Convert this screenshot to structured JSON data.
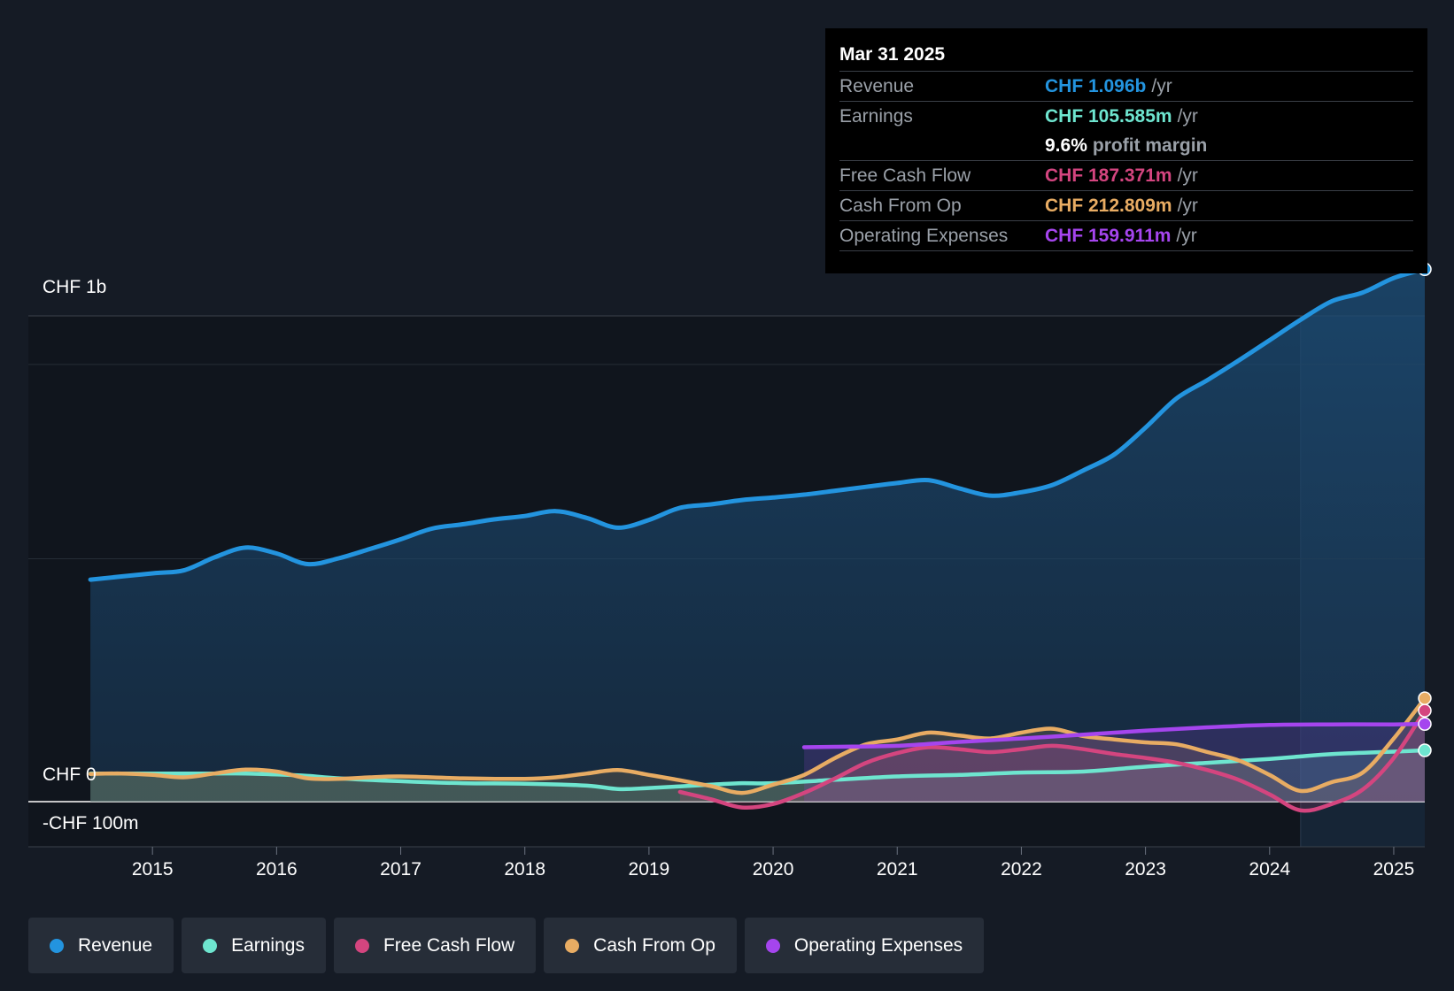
{
  "chart_data": {
    "type": "line",
    "currency": "CHF",
    "y_axis_labels": [
      "CHF 1b",
      "CHF 0",
      "-CHF 100m"
    ],
    "ylim": [
      -100,
      1100
    ],
    "x_ticks": [
      "2015",
      "2016",
      "2017",
      "2018",
      "2019",
      "2020",
      "2021",
      "2022",
      "2023",
      "2024",
      "2025"
    ],
    "xlim": [
      2014.0,
      2025.25
    ],
    "highlight_start": 2024.25,
    "series": [
      {
        "name": "Revenue",
        "color": "#2394df",
        "filled": true,
        "points": [
          [
            2014.5,
            457
          ],
          [
            2015.0,
            470
          ],
          [
            2015.25,
            476
          ],
          [
            2015.5,
            503
          ],
          [
            2015.75,
            523
          ],
          [
            2016.0,
            511
          ],
          [
            2016.25,
            489
          ],
          [
            2016.5,
            501
          ],
          [
            2016.75,
            520
          ],
          [
            2017.0,
            540
          ],
          [
            2017.25,
            562
          ],
          [
            2017.5,
            571
          ],
          [
            2017.75,
            581
          ],
          [
            2018.0,
            588
          ],
          [
            2018.25,
            598
          ],
          [
            2018.5,
            584
          ],
          [
            2018.75,
            564
          ],
          [
            2019.0,
            580
          ],
          [
            2019.25,
            605
          ],
          [
            2019.5,
            612
          ],
          [
            2019.75,
            621
          ],
          [
            2020.0,
            626
          ],
          [
            2020.25,
            632
          ],
          [
            2020.5,
            640
          ],
          [
            2020.75,
            648
          ],
          [
            2021.0,
            656
          ],
          [
            2021.25,
            662
          ],
          [
            2021.5,
            645
          ],
          [
            2021.75,
            630
          ],
          [
            2022.0,
            637
          ],
          [
            2022.25,
            652
          ],
          [
            2022.5,
            682
          ],
          [
            2022.75,
            715
          ],
          [
            2023.0,
            770
          ],
          [
            2023.25,
            830
          ],
          [
            2023.5,
            868
          ],
          [
            2023.75,
            908
          ],
          [
            2024.0,
            950
          ],
          [
            2024.25,
            992
          ],
          [
            2024.5,
            1030
          ],
          [
            2024.75,
            1048
          ],
          [
            2025.0,
            1078
          ],
          [
            2025.25,
            1096
          ]
        ]
      },
      {
        "name": "Earnings",
        "color": "#6ee5cf",
        "filled": true,
        "points": [
          [
            2014.5,
            58
          ],
          [
            2015.0,
            58
          ],
          [
            2015.5,
            58
          ],
          [
            2015.75,
            58
          ],
          [
            2016.0,
            56
          ],
          [
            2016.25,
            53
          ],
          [
            2016.5,
            48
          ],
          [
            2017.0,
            42
          ],
          [
            2017.5,
            38
          ],
          [
            2018.0,
            37
          ],
          [
            2018.5,
            33
          ],
          [
            2018.75,
            26
          ],
          [
            2019.0,
            28
          ],
          [
            2019.5,
            35
          ],
          [
            2019.75,
            38
          ],
          [
            2020.0,
            38
          ],
          [
            2020.5,
            45
          ],
          [
            2021.0,
            52
          ],
          [
            2021.5,
            55
          ],
          [
            2022.0,
            60
          ],
          [
            2022.5,
            62
          ],
          [
            2023.0,
            72
          ],
          [
            2023.5,
            80
          ],
          [
            2024.0,
            88
          ],
          [
            2024.25,
            93
          ],
          [
            2024.5,
            98
          ],
          [
            2025.0,
            103
          ],
          [
            2025.25,
            105.585
          ]
        ]
      },
      {
        "name": "Free Cash Flow",
        "color": "#d4457f",
        "filled": true,
        "points": [
          [
            2019.25,
            20
          ],
          [
            2019.5,
            5
          ],
          [
            2019.75,
            -12
          ],
          [
            2020.0,
            -5
          ],
          [
            2020.25,
            18
          ],
          [
            2020.5,
            48
          ],
          [
            2020.75,
            80
          ],
          [
            2021.0,
            100
          ],
          [
            2021.25,
            112
          ],
          [
            2021.5,
            108
          ],
          [
            2021.75,
            102
          ],
          [
            2022.0,
            108
          ],
          [
            2022.25,
            115
          ],
          [
            2022.5,
            108
          ],
          [
            2022.75,
            98
          ],
          [
            2023.0,
            90
          ],
          [
            2023.25,
            80
          ],
          [
            2023.5,
            65
          ],
          [
            2023.75,
            45
          ],
          [
            2024.0,
            15
          ],
          [
            2024.25,
            -18
          ],
          [
            2024.5,
            -5
          ],
          [
            2024.75,
            25
          ],
          [
            2025.0,
            90
          ],
          [
            2025.25,
            187.371
          ]
        ]
      },
      {
        "name": "Cash From Op",
        "color": "#e8ac63",
        "filled": true,
        "points": [
          [
            2014.5,
            57
          ],
          [
            2014.75,
            58
          ],
          [
            2015.0,
            55
          ],
          [
            2015.25,
            50
          ],
          [
            2015.5,
            58
          ],
          [
            2015.75,
            66
          ],
          [
            2016.0,
            62
          ],
          [
            2016.25,
            48
          ],
          [
            2016.5,
            47
          ],
          [
            2016.75,
            50
          ],
          [
            2017.0,
            52
          ],
          [
            2017.5,
            48
          ],
          [
            2018.0,
            47
          ],
          [
            2018.25,
            50
          ],
          [
            2018.5,
            58
          ],
          [
            2018.75,
            65
          ],
          [
            2019.0,
            55
          ],
          [
            2019.25,
            44
          ],
          [
            2019.5,
            32
          ],
          [
            2019.75,
            18
          ],
          [
            2020.0,
            35
          ],
          [
            2020.25,
            55
          ],
          [
            2020.5,
            90
          ],
          [
            2020.75,
            118
          ],
          [
            2021.0,
            128
          ],
          [
            2021.25,
            142
          ],
          [
            2021.5,
            136
          ],
          [
            2021.75,
            130
          ],
          [
            2022.0,
            142
          ],
          [
            2022.25,
            150
          ],
          [
            2022.5,
            135
          ],
          [
            2022.75,
            128
          ],
          [
            2023.0,
            122
          ],
          [
            2023.25,
            118
          ],
          [
            2023.5,
            102
          ],
          [
            2023.75,
            85
          ],
          [
            2024.0,
            55
          ],
          [
            2024.25,
            22
          ],
          [
            2024.5,
            40
          ],
          [
            2024.75,
            60
          ],
          [
            2025.0,
            130
          ],
          [
            2025.25,
            212.809
          ]
        ]
      },
      {
        "name": "Operating Expenses",
        "color": "#a545ee",
        "filled": true,
        "points": [
          [
            2020.25,
            112
          ],
          [
            2020.5,
            113
          ],
          [
            2021.0,
            115
          ],
          [
            2021.5,
            123
          ],
          [
            2022.0,
            130
          ],
          [
            2022.5,
            138
          ],
          [
            2023.0,
            146
          ],
          [
            2023.5,
            153
          ],
          [
            2024.0,
            158
          ],
          [
            2024.5,
            159
          ],
          [
            2025.0,
            159
          ],
          [
            2025.25,
            159.911
          ]
        ]
      }
    ]
  },
  "tooltip": {
    "date": "Mar 31 2025",
    "revenue_label": "Revenue",
    "revenue_value": "CHF 1.096b",
    "revenue_unit": "/yr",
    "earnings_label": "Earnings",
    "earnings_value": "CHF 105.585m",
    "earnings_unit": "/yr",
    "margin_value": "9.6%",
    "margin_label": "profit margin",
    "fcf_label": "Free Cash Flow",
    "fcf_value": "CHF 187.371m",
    "fcf_unit": "/yr",
    "cfo_label": "Cash From Op",
    "cfo_value": "CHF 212.809m",
    "cfo_unit": "/yr",
    "opex_label": "Operating Expenses",
    "opex_value": "CHF 159.911m",
    "opex_unit": "/yr"
  },
  "legend": [
    {
      "label": "Revenue",
      "color": "#2394df"
    },
    {
      "label": "Earnings",
      "color": "#6ee5cf"
    },
    {
      "label": "Free Cash Flow",
      "color": "#d4457f"
    },
    {
      "label": "Cash From Op",
      "color": "#e8ac63"
    },
    {
      "label": "Operating Expenses",
      "color": "#a545ee"
    }
  ],
  "colors": {
    "background": "#151b25",
    "plot_bg": "#10151d",
    "highlight": "#17273a"
  }
}
